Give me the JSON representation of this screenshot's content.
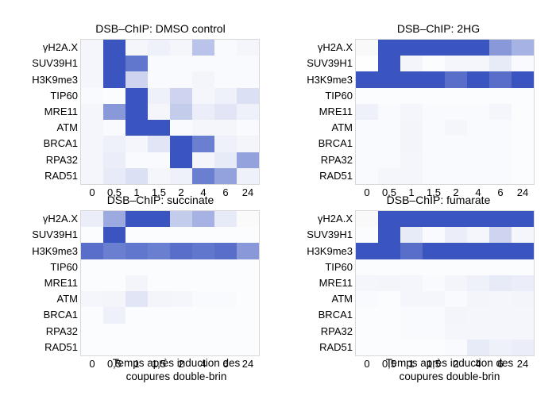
{
  "rows": [
    "γH2A.X",
    "SUV39H1",
    "H3K9me3",
    "TIP60",
    "MRE11",
    "ATM",
    "BRCA1",
    "RPA32",
    "RAD51"
  ],
  "times": [
    "0",
    "0,5",
    "1",
    "1,5",
    "2",
    "4",
    "6",
    "24"
  ],
  "xlabel_line1": "Temps après induction des",
  "xlabel_line2": "coupures double-brin",
  "colors": {
    "high": "#3a54c0",
    "low": "#ffffff",
    "grey": "#c8c8c8"
  },
  "chart_data": [
    {
      "type": "heatmap",
      "title": "DSB–ChIP: DMSO control",
      "xlabel": "",
      "values": [
        [
          0.05,
          1,
          0.05,
          0.08,
          0.05,
          0.35,
          0.03,
          0.05
        ],
        [
          0.05,
          1,
          0.8,
          0.03,
          0.03,
          0.03,
          0.03,
          0.03
        ],
        [
          0.05,
          1,
          0.25,
          0.03,
          0.03,
          0.06,
          0.03,
          0.03
        ],
        [
          0.03,
          0.02,
          1,
          0.08,
          0.25,
          0.05,
          0.08,
          0.18
        ],
        [
          0.05,
          0.6,
          1,
          0.05,
          0.3,
          0.1,
          0.15,
          0.08
        ],
        [
          0.05,
          0.03,
          1,
          1,
          0.03,
          0.05,
          0.05,
          0.03
        ],
        [
          0.05,
          0.08,
          0.05,
          0.15,
          1,
          0.75,
          0.08,
          0.06
        ],
        [
          0.05,
          0.1,
          0.03,
          0.03,
          1,
          0.06,
          0.12,
          0.55
        ],
        [
          0.05,
          0.12,
          0.18,
          0.05,
          0.08,
          0.75,
          0.55,
          0.08
        ]
      ],
      "grey": []
    },
    {
      "type": "heatmap",
      "title": "DSB–ChIP: 2HG",
      "xlabel": "",
      "values": [
        [
          0.12,
          1,
          1,
          1,
          1,
          1,
          0.6,
          0.45
        ],
        [
          0.02,
          1,
          0.06,
          0.02,
          0.05,
          0.05,
          0.12,
          0.03
        ],
        [
          1,
          1,
          1,
          1,
          0.85,
          1,
          0.85,
          1
        ],
        [
          0.02,
          0.02,
          0.02,
          0.02,
          0.02,
          0.02,
          0.02,
          0.02
        ],
        [
          0.08,
          0.03,
          0.05,
          0.03,
          0.03,
          0.03,
          0.05,
          0.02
        ],
        [
          0.03,
          0.03,
          0.06,
          0.03,
          0.05,
          0.03,
          0.03,
          0.02
        ],
        [
          0.03,
          0.03,
          0.06,
          0.03,
          0.03,
          0.03,
          0.03,
          0.02
        ],
        [
          0.03,
          0.03,
          0.05,
          0.03,
          0.03,
          0.03,
          0.03,
          0.02
        ],
        [
          0.03,
          0.05,
          0.05,
          0.03,
          0.03,
          0.03,
          0.03,
          0.02
        ]
      ],
      "grey": [
        [
          0,
          0
        ],
        [
          1,
          0
        ]
      ]
    },
    {
      "type": "heatmap",
      "title": "DSB–ChIP: succinate",
      "xlabel": "Temps après induction des coupures double-brin",
      "values": [
        [
          0.1,
          0.5,
          1,
          1,
          0.3,
          0.45,
          0.12,
          0.1
        ],
        [
          0.02,
          1,
          0.02,
          0.02,
          0.02,
          0.02,
          0.02,
          0.02
        ],
        [
          0.85,
          0.75,
          0.8,
          0.75,
          0.85,
          0.8,
          0.85,
          0.6
        ],
        [
          0.02,
          0.02,
          0.02,
          0.02,
          0.02,
          0.02,
          0.02,
          0.02
        ],
        [
          0.02,
          0.02,
          0.06,
          0.02,
          0.02,
          0.02,
          0.02,
          0.02
        ],
        [
          0.05,
          0.06,
          0.15,
          0.06,
          0.05,
          0.03,
          0.03,
          0.02
        ],
        [
          0.02,
          0.08,
          0.02,
          0.02,
          0.02,
          0.02,
          0.02,
          0.02
        ],
        [
          0.02,
          0.02,
          0.02,
          0.02,
          0.02,
          0.02,
          0.02,
          0.02
        ],
        [
          0.02,
          0.02,
          0.02,
          0.02,
          0.02,
          0.02,
          0.02,
          0.02
        ]
      ],
      "grey": [
        [
          0,
          7
        ]
      ]
    },
    {
      "type": "heatmap",
      "title": "DSB–ChIP: fumarate",
      "xlabel": "Temps après induction des coupures double-brin",
      "values": [
        [
          0.12,
          1,
          1,
          1,
          1,
          1,
          1,
          1
        ],
        [
          0.02,
          1,
          0.12,
          0.03,
          0.1,
          0.05,
          0.25,
          0.05
        ],
        [
          1,
          1,
          0.85,
          1,
          1,
          1,
          1,
          1
        ],
        [
          0.02,
          0.02,
          0.02,
          0.02,
          0.02,
          0.02,
          0.02,
          0.02
        ],
        [
          0.05,
          0.06,
          0.05,
          0.03,
          0.06,
          0.08,
          0.12,
          0.1
        ],
        [
          0.03,
          0.02,
          0.05,
          0.05,
          0.03,
          0.06,
          0.05,
          0.06
        ],
        [
          0.02,
          0.02,
          0.03,
          0.03,
          0.06,
          0.05,
          0.05,
          0.05
        ],
        [
          0.02,
          0.02,
          0.03,
          0.03,
          0.05,
          0.05,
          0.05,
          0.05
        ],
        [
          0.02,
          0.02,
          0.02,
          0.02,
          0.03,
          0.12,
          0.08,
          0.1
        ]
      ],
      "grey": [
        [
          0,
          0
        ]
      ]
    }
  ]
}
